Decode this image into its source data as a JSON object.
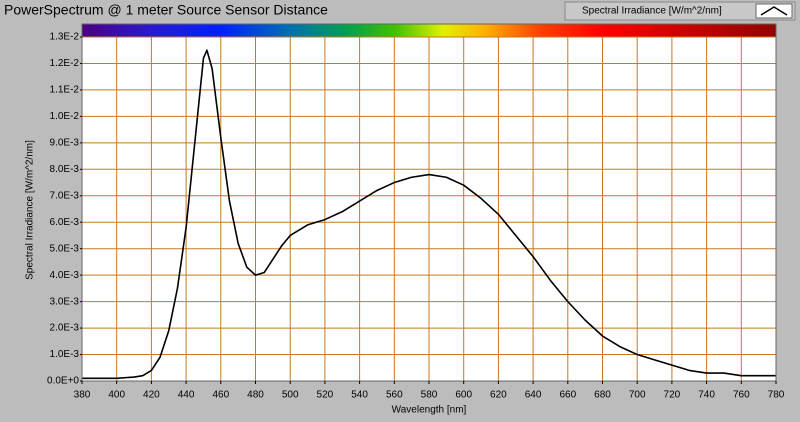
{
  "chart_data": {
    "type": "line",
    "title": "PowerSpectrum @ 1 meter Source Sensor Distance",
    "x_label": "Wavelength [nm]",
    "y_label": "Spectral Irradiance [W/m^2/nm]",
    "x": [
      380,
      390,
      400,
      410,
      415,
      420,
      425,
      430,
      435,
      440,
      445,
      450,
      452,
      455,
      460,
      465,
      470,
      475,
      480,
      485,
      490,
      495,
      500,
      510,
      520,
      530,
      540,
      550,
      560,
      570,
      580,
      590,
      600,
      610,
      620,
      630,
      640,
      650,
      660,
      670,
      680,
      690,
      700,
      710,
      720,
      730,
      740,
      750,
      760,
      770,
      780
    ],
    "series": [
      {
        "name": "Spectral Irradiance [W/m^2/nm]",
        "color": "#000000",
        "values": [
          0.0001,
          0.0001,
          0.0001,
          0.00015,
          0.0002,
          0.0004,
          0.0009,
          0.0019,
          0.0035,
          0.0058,
          0.009,
          0.0122,
          0.0125,
          0.0118,
          0.0092,
          0.0068,
          0.0052,
          0.0043,
          0.004,
          0.0041,
          0.0046,
          0.0051,
          0.0055,
          0.0059,
          0.0061,
          0.0064,
          0.0068,
          0.0072,
          0.0075,
          0.0077,
          0.0078,
          0.0077,
          0.0074,
          0.0069,
          0.0063,
          0.0055,
          0.0047,
          0.0038,
          0.003,
          0.0023,
          0.0017,
          0.0013,
          0.001,
          0.0008,
          0.0006,
          0.0004,
          0.0003,
          0.0003,
          0.0002,
          0.0002,
          0.0002
        ]
      }
    ],
    "xlim": [
      380,
      780
    ],
    "xticks": [
      380,
      400,
      420,
      440,
      460,
      480,
      500,
      520,
      540,
      560,
      580,
      600,
      620,
      640,
      660,
      680,
      700,
      720,
      740,
      760,
      780
    ],
    "ylim": [
      0,
      0.013
    ],
    "yticks": [
      {
        "value": 0,
        "label": "0.0E+0"
      },
      {
        "value": 0.001,
        "label": "1.0E-3"
      },
      {
        "value": 0.002,
        "label": "2.0E-3"
      },
      {
        "value": 0.003,
        "label": "3.0E-3"
      },
      {
        "value": 0.004,
        "label": "4.0E-3"
      },
      {
        "value": 0.005,
        "label": "5.0E-3"
      },
      {
        "value": 0.006,
        "label": "6.0E-3"
      },
      {
        "value": 0.007,
        "label": "7.0E-3"
      },
      {
        "value": 0.008,
        "label": "8.0E-3"
      },
      {
        "value": 0.009,
        "label": "9.0E-3"
      },
      {
        "value": 0.01,
        "label": "1.0E-2"
      },
      {
        "value": 0.011,
        "label": "1.1E-2"
      },
      {
        "value": 0.012,
        "label": "1.2E-2"
      },
      {
        "value": 0.013,
        "label": "1.3E-2"
      }
    ],
    "grid": true,
    "grid_color": "#c8781e"
  }
}
